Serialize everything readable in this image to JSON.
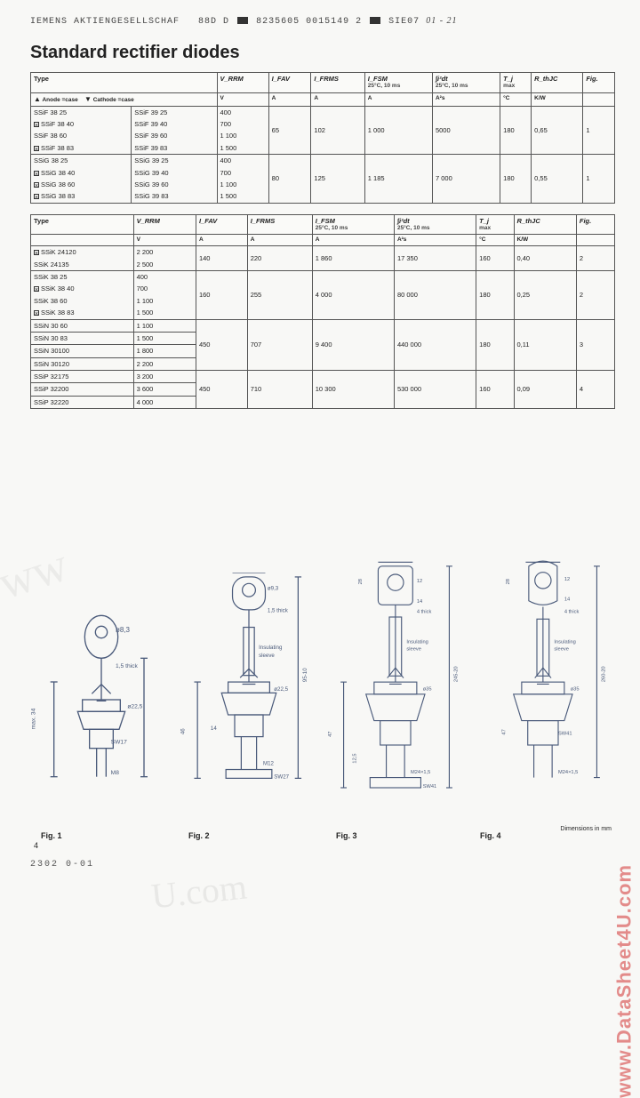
{
  "header": {
    "text_left": "IEMENS AKTIENGESELLSCHAF",
    "text_mid1": "88D D",
    "text_mid2": "8235605 0015149 2",
    "text_right": "SIE07",
    "handwritten": "01 - 21"
  },
  "title": "Standard rectifier diodes",
  "table1": {
    "columns": [
      "Type",
      "V_RRM",
      "I_FAV",
      "I_FRMS",
      "I_FSM 25°C, 10 ms",
      "∫i²dt 25°C, 10 ms",
      "T_j max",
      "R_thJC",
      "Fig."
    ],
    "units": [
      "",
      "V",
      "A",
      "A",
      "A",
      "A²s",
      "°C",
      "K/W",
      ""
    ],
    "anode_label": "▲ Anode = case",
    "cathode_label": "▼ Cathode = case",
    "groups": [
      {
        "left": [
          "SSiF 38 25",
          "SSiF 38 40",
          "SSiF 38 60",
          "SSiF 38 83"
        ],
        "left_chk": [
          false,
          true,
          false,
          true
        ],
        "right": [
          "SSiF 39 25",
          "SSiF 39 40",
          "SSiF 39 60",
          "SSiF 39 83"
        ],
        "vrrm": [
          "400",
          "700",
          "1 100",
          "1 500"
        ],
        "ifav": "65",
        "ifrms": "102",
        "ifsm": "1 000",
        "i2t": "5000",
        "tj": "180",
        "rth": "0,65",
        "fig": "1"
      },
      {
        "left": [
          "SSiG 38 25",
          "SSiG 38 40",
          "SSiG 38 60",
          "SSiG 38 83"
        ],
        "left_chk": [
          false,
          true,
          true,
          true
        ],
        "right": [
          "SSiG 39 25",
          "SSiG 39 40",
          "SSiG 39 60",
          "SSiG 39 83"
        ],
        "vrrm": [
          "400",
          "700",
          "1 100",
          "1 500"
        ],
        "ifav": "80",
        "ifrms": "125",
        "ifsm": "1 185",
        "i2t": "7 000",
        "tj": "180",
        "rth": "0,55",
        "fig": "1"
      }
    ]
  },
  "table2": {
    "columns": [
      "Type",
      "V_RRM",
      "I_FAV",
      "I_FRMS",
      "I_FSM 25°C, 10 ms",
      "∫i²dt 25°C, 10 ms",
      "T_j max",
      "R_thJC",
      "Fig."
    ],
    "units": [
      "",
      "V",
      "A",
      "A",
      "A",
      "A²s",
      "°C",
      "K/W",
      ""
    ],
    "groups": [
      {
        "left": [
          "SSiK 24120",
          "SSiK 24135"
        ],
        "left_chk": [
          true,
          false
        ],
        "vrrm": [
          "2 200",
          "2 500"
        ],
        "ifav": "140",
        "ifrms": "220",
        "ifsm": "1 860",
        "i2t": "17 350",
        "tj": "160",
        "rth": "0,40",
        "fig": "2"
      },
      {
        "left": [
          "SSiK 38 25",
          "SSiK 38 40",
          "SSiK 38 60",
          "SSiK 38 83"
        ],
        "left_chk": [
          false,
          true,
          false,
          true
        ],
        "vrrm": [
          "400",
          "700",
          "1 100",
          "1 500"
        ],
        "ifav": "160",
        "ifrms": "255",
        "ifsm": "4 000",
        "i2t": "80 000",
        "tj": "180",
        "rth": "0,25",
        "fig": "2"
      },
      {
        "left": [
          "SSiN 30 60",
          "SSiN 30 83",
          "SSiN 30100",
          "SSiN 30120"
        ],
        "left_chk": [
          false,
          false,
          false,
          false
        ],
        "vrrm": [
          "1 100",
          "1 500",
          "1 800",
          "2 200"
        ],
        "ifav": "450",
        "ifrms": "707",
        "ifsm": "9 400",
        "i2t": "440 000",
        "tj": "180",
        "rth": "0,11",
        "fig": "3",
        "row_borders": [
          false,
          true,
          true,
          true
        ]
      },
      {
        "left": [
          "SSiP 32175",
          "SSiP 32200",
          "SSiP 32220"
        ],
        "left_chk": [
          false,
          false,
          false
        ],
        "vrrm": [
          "3 200",
          "3 600",
          "4 000"
        ],
        "ifav": "450",
        "ifrms": "710",
        "ifsm": "10 300",
        "i2t": "530 000",
        "tj": "160",
        "rth": "0,09",
        "fig": "4",
        "row_borders": [
          true,
          true,
          false
        ]
      }
    ]
  },
  "figures": {
    "labels": [
      "Fig. 1",
      "Fig. 2",
      "Fig. 3",
      "Fig. 4"
    ],
    "dim_note": "Dimensions in mm",
    "fig1_dims": [
      "ø8,3",
      "1,5 thick",
      "ø22,5",
      "ø15,7±0,1",
      "SW17",
      "M8",
      "max. 34",
      "5,5±0,1",
      "17",
      "10±2",
      "65-10"
    ],
    "fig2_dims": [
      "16,7",
      "ø9,3",
      "1,5 thick",
      "Insulating sleeve",
      "ø22,5",
      "14",
      "M12",
      "SW27",
      "46",
      "95-10",
      "28"
    ],
    "fig3_dims": [
      "27",
      "12",
      "28",
      "14",
      "4 thick",
      "Insulating sleeve",
      "ø35",
      "47",
      "12,5",
      "M24×1,5",
      "SW41",
      "245-20"
    ],
    "fig4_dims": [
      "27",
      "12",
      "28",
      "14",
      "4 thick",
      "Insulating sleeve",
      "ø35",
      "47",
      "SW41",
      "M24×1,5",
      "260-20"
    ]
  },
  "footer": {
    "pagenum": "4",
    "code": "2302    0-01"
  },
  "watermarks": {
    "tl": "www",
    "b": "U.com",
    "r": "www.DataSheet4U.com"
  },
  "colors": {
    "text": "#222222",
    "border": "#555555",
    "bg": "#f8f8f6",
    "wm_red": "rgba(210,50,50,0.55)",
    "wm_gray": "rgba(160,160,160,0.16)"
  }
}
